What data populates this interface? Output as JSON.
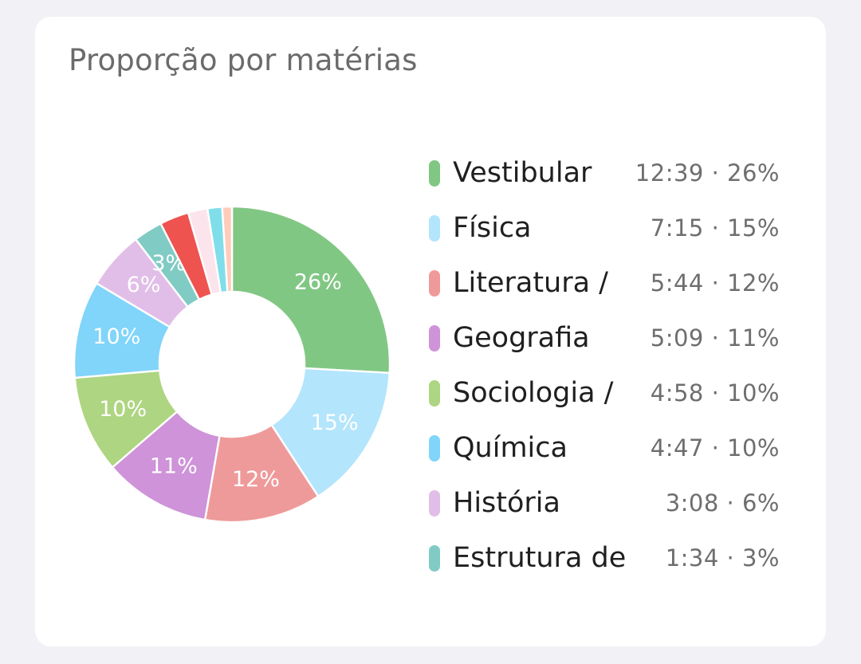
{
  "card": {
    "title": "Proporção por matérias"
  },
  "chart_data": {
    "type": "pie",
    "title": "Proporção por matérias",
    "donut": true,
    "legend_position": "right",
    "series": [
      {
        "name": "Vestibular",
        "time": "12:39",
        "value": 26,
        "label": "26%",
        "color": "#81c784"
      },
      {
        "name": "Física",
        "time": "7:15",
        "value": 15,
        "label": "15%",
        "color": "#b3e5fc"
      },
      {
        "name": "Literatura /",
        "time": "5:44",
        "value": 12,
        "label": "12%",
        "color": "#ef9a9a"
      },
      {
        "name": "Geografia",
        "time": "5:09",
        "value": 11,
        "label": "11%",
        "color": "#ce93d8"
      },
      {
        "name": "Sociologia /",
        "time": "4:58",
        "value": 10,
        "label": "10%",
        "color": "#aed581"
      },
      {
        "name": "Química",
        "time": "4:47",
        "value": 10,
        "label": "10%",
        "color": "#81d4fa"
      },
      {
        "name": "História",
        "time": "3:08",
        "value": 6,
        "label": "6%",
        "color": "#e1bee7"
      },
      {
        "name": "Estrutura de",
        "time": "1:34",
        "value": 3,
        "label": "3%",
        "color": "#80cbc4"
      },
      {
        "name": "",
        "time": "",
        "value": 3,
        "label": "",
        "color": "#ef5350"
      },
      {
        "name": "",
        "time": "",
        "value": 2,
        "label": "",
        "color": "#fce4ec"
      },
      {
        "name": "",
        "time": "",
        "value": 1.5,
        "label": "",
        "color": "#80deea"
      },
      {
        "name": "",
        "time": "",
        "value": 1,
        "label": "",
        "color": "#ffccbc"
      }
    ]
  }
}
